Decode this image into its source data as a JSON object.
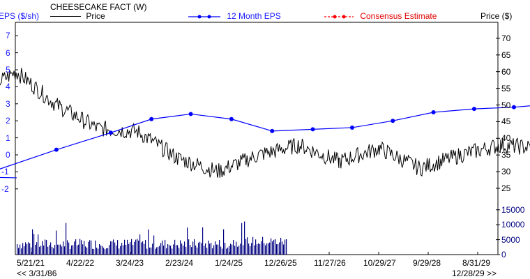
{
  "header": {
    "title": "CHEESECAKE FACT (W)",
    "left_axis_label": "EPS ($/sh)",
    "right_axis_label": "Price ($)",
    "legend": [
      {
        "label": "Price",
        "color": "#000000",
        "style": "solid"
      },
      {
        "label": "12 Month EPS",
        "color": "#0000ff",
        "style": "solid-dots"
      },
      {
        "label": "Consensus Estimate",
        "color": "#ff0000",
        "style": "dashed-dots"
      }
    ]
  },
  "footer": {
    "start_marker": "<< 3/31/86",
    "end_marker": "12/28/29 >>"
  },
  "chart_data": {
    "type": "line",
    "title": "CHEESECAKE FACT (W)",
    "xlabel": "",
    "ylabel_left": "EPS ($/sh)",
    "ylabel_right": "Price ($)",
    "x_ticks": [
      "5/21/21",
      "4/22/22",
      "3/24/23",
      "2/23/24",
      "1/24/25",
      "12/26/25",
      "11/27/26",
      "10/29/27",
      "9/29/28",
      "8/31/29"
    ],
    "eps_axis": {
      "ticks": [
        -2,
        -1,
        0,
        1,
        2,
        3,
        4,
        5,
        6,
        7
      ],
      "range": [
        -2.5,
        7.8
      ]
    },
    "price_axis": {
      "ticks": [
        25,
        30,
        35,
        40,
        45,
        50,
        55,
        60,
        65,
        70
      ],
      "range": [
        22,
        74
      ]
    },
    "volume_axis": {
      "ticks": [
        0,
        5000,
        10000,
        15000
      ]
    },
    "series": [
      {
        "name": "12 Month EPS",
        "color": "#0000ff",
        "points": [
          {
            "x": "2021-01",
            "y": -1.3
          },
          {
            "x": "2021-07",
            "y": 0.3
          },
          {
            "x": "2021-11",
            "y": 1.3
          },
          {
            "x": "2022-02",
            "y": 2.1
          },
          {
            "x": "2022-05",
            "y": 2.4
          },
          {
            "x": "2022-08",
            "y": 2.1
          },
          {
            "x": "2022-11",
            "y": 1.4
          },
          {
            "x": "2023-02",
            "y": 1.5
          },
          {
            "x": "2023-05",
            "y": 1.6
          },
          {
            "x": "2023-08",
            "y": 2.0
          },
          {
            "x": "2023-11",
            "y": 2.5
          },
          {
            "x": "2024-02",
            "y": 2.7
          },
          {
            "x": "2024-05",
            "y": 2.8
          },
          {
            "x": "2024-08",
            "y": 3.0
          },
          {
            "x": "2024-11",
            "y": 3.2
          },
          {
            "x": "2025-03",
            "y": 3.5
          },
          {
            "x": "2025-06",
            "y": 3.6
          },
          {
            "x": "2025-09",
            "y": 3.7
          },
          {
            "x": "2025-12",
            "y": 3.85
          }
        ]
      },
      {
        "name": "Consensus Estimate",
        "color": "#ff0000",
        "points": [
          {
            "x": "2025-12",
            "y": 3.85
          },
          {
            "x": "2026-03",
            "y": 3.7
          },
          {
            "x": "2026-06",
            "y": 3.8
          },
          {
            "x": "2026-12",
            "y": 4.0
          },
          {
            "x": "2027-12",
            "y": 4.5
          },
          {
            "x": "2028-12",
            "y": 5.0
          },
          {
            "x": "2029-12",
            "y": 5.5
          }
        ]
      },
      {
        "name": "Price",
        "color": "#000000",
        "approx_points": [
          {
            "x": "2021-01",
            "y": 53
          },
          {
            "x": "2021-04",
            "y": 60
          },
          {
            "x": "2021-07",
            "y": 50
          },
          {
            "x": "2021-10",
            "y": 43
          },
          {
            "x": "2022-01",
            "y": 42
          },
          {
            "x": "2022-04",
            "y": 34
          },
          {
            "x": "2022-07",
            "y": 30
          },
          {
            "x": "2022-10",
            "y": 35
          },
          {
            "x": "2023-01",
            "y": 38
          },
          {
            "x": "2023-04",
            "y": 33
          },
          {
            "x": "2023-07",
            "y": 37
          },
          {
            "x": "2023-10",
            "y": 31
          },
          {
            "x": "2024-01",
            "y": 35
          },
          {
            "x": "2024-04",
            "y": 38
          },
          {
            "x": "2024-07",
            "y": 37
          },
          {
            "x": "2024-10",
            "y": 43
          },
          {
            "x": "2025-01",
            "y": 52
          },
          {
            "x": "2025-03",
            "y": 47
          },
          {
            "x": "2025-06",
            "y": 65
          },
          {
            "x": "2025-09",
            "y": 53
          },
          {
            "x": "2025-11",
            "y": 44
          },
          {
            "x": "2026-01",
            "y": 60
          }
        ]
      }
    ],
    "volume_series": {
      "name": "Volume",
      "color": "#000080",
      "typical": 3500,
      "max": 10500
    },
    "grid": false,
    "legend_position": "top"
  }
}
